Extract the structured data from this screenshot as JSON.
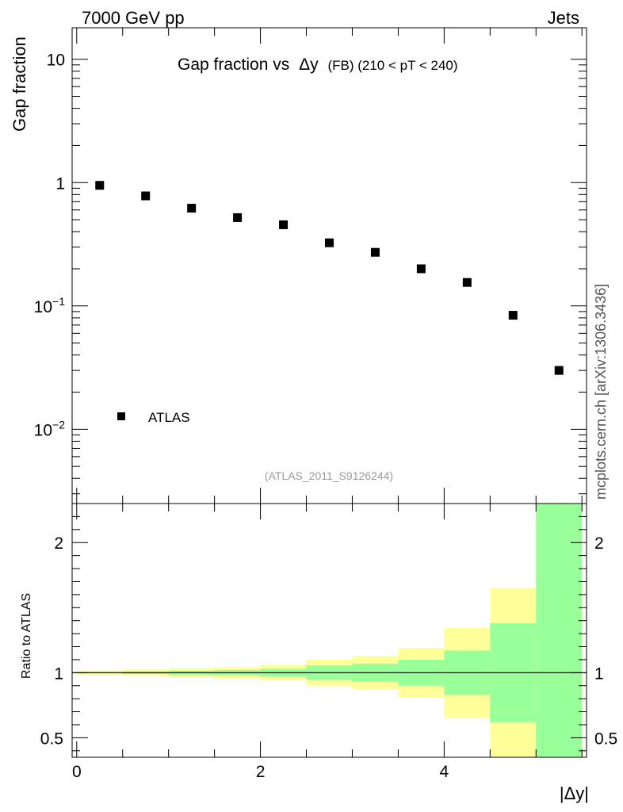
{
  "header": {
    "left": "7000 GeV pp",
    "right": "Jets",
    "side_label": "mcplots.cern.ch [arXiv:1306.3436]",
    "analysis_tag": "(ATLAS_2011_S9126244)"
  },
  "chart_data": [
    {
      "type": "scatter",
      "title_main": "Gap fraction vs",
      "title_sym": "Δy",
      "title_rest": "(FB)  (210 < pT < 240)",
      "ylabel": "Gap fraction",
      "xlabel": "",
      "yscale": "log",
      "ylim": [
        0.0025,
        18
      ],
      "xlim": [
        -0.05,
        5.55
      ],
      "ytick_labels": [
        {
          "value": 10,
          "base": "10",
          "exp": ""
        },
        {
          "value": 1,
          "base": "1",
          "exp": ""
        },
        {
          "value": 0.1,
          "base": "10",
          "exp": "−1"
        },
        {
          "value": 0.01,
          "base": "10",
          "exp": "−2"
        }
      ],
      "series": [
        {
          "name": "ATLAS",
          "color": "#000000",
          "marker": "square",
          "x": [
            0.25,
            0.75,
            1.25,
            1.75,
            2.25,
            2.75,
            3.25,
            3.75,
            4.25,
            4.75,
            5.25
          ],
          "y": [
            0.95,
            0.78,
            0.62,
            0.52,
            0.455,
            0.325,
            0.272,
            0.2,
            0.155,
            0.084,
            0.03
          ]
        }
      ],
      "legend": {
        "placement": "bottom-left",
        "entry": "ATLAS"
      }
    },
    {
      "type": "area",
      "ylabel": "Ratio to ATLAS",
      "xlabel": "|Δy|",
      "ylim": [
        0.35,
        2.3
      ],
      "xlim": [
        -0.05,
        5.55
      ],
      "xtick_labels": [
        "0",
        "2",
        "4"
      ],
      "xtick_values": [
        0,
        2,
        4
      ],
      "ytick_labels": [
        "0.5",
        "1",
        "2"
      ],
      "ytick_values": [
        0.5,
        1,
        2
      ],
      "reference_line": 1,
      "bin_edges": [
        0,
        0.5,
        1,
        1.5,
        2,
        2.5,
        3,
        3.5,
        4,
        4.5,
        5,
        5.5
      ],
      "band_outer": {
        "color": "#ffff99",
        "lo": [
          0.985,
          0.975,
          0.965,
          0.955,
          0.94,
          0.9,
          0.87,
          0.81,
          0.655,
          0.35,
          0.35
        ],
        "hi": [
          1.015,
          1.025,
          1.035,
          1.045,
          1.06,
          1.1,
          1.13,
          1.19,
          1.345,
          1.65,
          1.65
        ]
      },
      "band_inner": {
        "color": "#99ff99",
        "lo": [
          0.995,
          0.99,
          0.985,
          0.98,
          0.97,
          0.945,
          0.93,
          0.9,
          0.83,
          0.62,
          0.35
        ],
        "hi": [
          1.005,
          1.01,
          1.015,
          1.02,
          1.03,
          1.055,
          1.07,
          1.1,
          1.17,
          1.38,
          2.3
        ]
      }
    }
  ]
}
